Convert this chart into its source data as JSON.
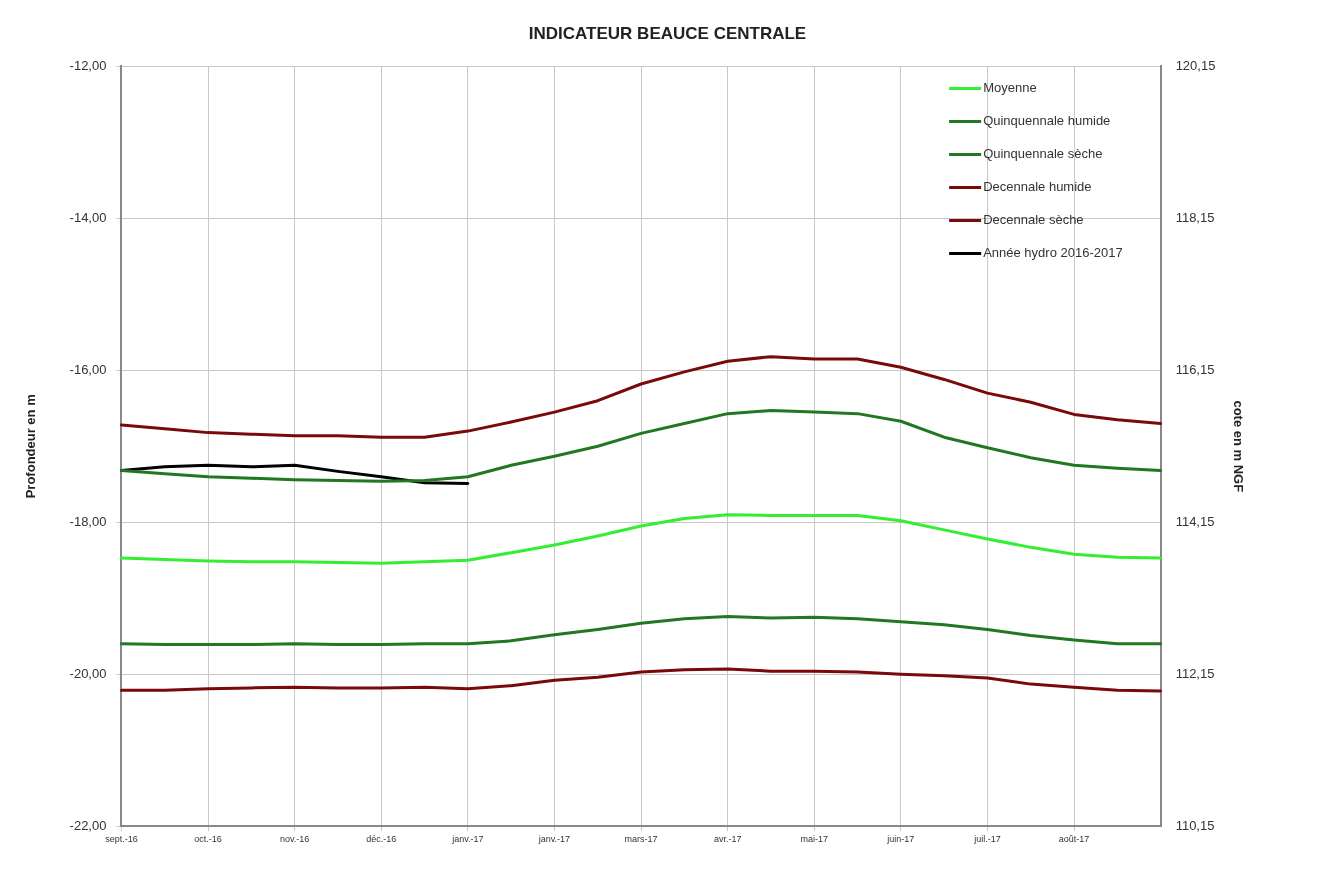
{
  "chart_data": {
    "type": "line",
    "title": "INDICATEUR BEAUCE CENTRALE",
    "ylabel": "Profondeur en m",
    "y2label": "cote en m NGF",
    "categories": [
      "sept.-16",
      null,
      "oct.-16",
      null,
      "nov.-16",
      null,
      "déc.-16",
      null,
      "janv.-17",
      null,
      "janv.-17",
      null,
      "mars-17",
      null,
      "avr.-17",
      null,
      "mai-17",
      null,
      "juin-17",
      null,
      "juil.-17",
      null,
      "août-17",
      null,
      null
    ],
    "ylim": [
      -22,
      -12
    ],
    "yticks": [
      {
        "value": -22,
        "label": "-22,00"
      },
      {
        "value": -20,
        "label": "-20,00"
      },
      {
        "value": -18,
        "label": "-18,00"
      },
      {
        "value": -16,
        "label": "-16,00"
      },
      {
        "value": -14,
        "label": "-14,00"
      },
      {
        "value": -12,
        "label": "-12,00"
      }
    ],
    "y2lim": [
      110.15,
      120.15
    ],
    "y2ticks": [
      {
        "value": 110.15,
        "label": "110,15"
      },
      {
        "value": 112.15,
        "label": "112,15"
      },
      {
        "value": 114.15,
        "label": "114,15"
      },
      {
        "value": 116.15,
        "label": "116,15"
      },
      {
        "value": 118.15,
        "label": "118,15"
      },
      {
        "value": 120.15,
        "label": "120,15"
      }
    ],
    "grid": true,
    "legend": "top right",
    "marker": "none",
    "line_style": "solid",
    "series": [
      {
        "name": "Moyenne",
        "color": "#33ee33",
        "values": [
          -18.47,
          -18.49,
          -18.51,
          -18.52,
          -18.52,
          -18.53,
          -18.54,
          -18.52,
          -18.5,
          -18.4,
          -18.3,
          -18.18,
          -18.05,
          -17.95,
          -17.9,
          -17.91,
          -17.91,
          -17.91,
          -17.98,
          -18.1,
          -18.22,
          -18.33,
          -18.42,
          -18.46,
          -18.47
        ]
      },
      {
        "name": "Quinquennale humide",
        "color": "#227722",
        "values": [
          -17.32,
          -17.36,
          -17.4,
          -17.42,
          -17.44,
          -17.45,
          -17.46,
          -17.45,
          -17.4,
          -17.25,
          -17.13,
          -17.0,
          -16.83,
          -16.7,
          -16.57,
          -16.53,
          -16.55,
          -16.57,
          -16.67,
          -16.88,
          -17.02,
          -17.15,
          -17.25,
          -17.29,
          -17.32
        ]
      },
      {
        "name": "Quinquennale sèche",
        "color": "#227722",
        "values": [
          -19.6,
          -19.61,
          -19.61,
          -19.61,
          -19.6,
          -19.61,
          -19.61,
          -19.6,
          -19.6,
          -19.56,
          -19.48,
          -19.41,
          -19.33,
          -19.27,
          -19.24,
          -19.26,
          -19.25,
          -19.27,
          -19.31,
          -19.35,
          -19.41,
          -19.49,
          -19.55,
          -19.6,
          -19.6
        ]
      },
      {
        "name": "Decennale humide",
        "color": "#7a0a0a",
        "values": [
          -16.72,
          -16.77,
          -16.82,
          -16.84,
          -16.86,
          -16.86,
          -16.88,
          -16.88,
          -16.8,
          -16.68,
          -16.55,
          -16.4,
          -16.18,
          -16.02,
          -15.88,
          -15.82,
          -15.85,
          -15.85,
          -15.96,
          -16.12,
          -16.3,
          -16.42,
          -16.58,
          -16.65,
          -16.7
        ]
      },
      {
        "name": "Decennale sèche",
        "color": "#7a0a0a",
        "values": [
          -20.21,
          -20.21,
          -20.19,
          -20.18,
          -20.17,
          -20.18,
          -20.18,
          -20.17,
          -20.19,
          -20.15,
          -20.08,
          -20.04,
          -19.97,
          -19.94,
          -19.93,
          -19.96,
          -19.96,
          -19.97,
          -20.0,
          -20.02,
          -20.05,
          -20.13,
          -20.17,
          -20.21,
          -20.22
        ]
      },
      {
        "name": "Année hydro 2016-2017",
        "color": "#000000",
        "values": [
          -17.32,
          -17.27,
          -17.25,
          -17.27,
          -17.25,
          -17.33,
          -17.4,
          -17.48,
          -17.49,
          null,
          null,
          null,
          null,
          null,
          null,
          null,
          null,
          null,
          null,
          null,
          null,
          null,
          null,
          null,
          null
        ]
      }
    ]
  }
}
